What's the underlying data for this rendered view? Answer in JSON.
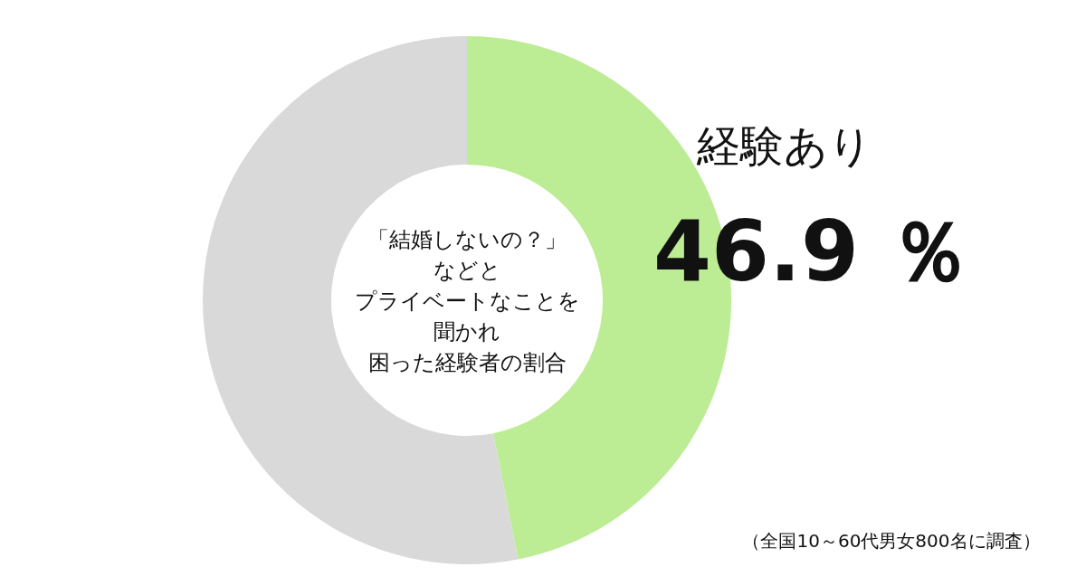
{
  "chart_data": {
    "type": "donut",
    "categories": [
      "経験あり",
      null
    ],
    "values": [
      46.9,
      53.1
    ],
    "colors": [
      "#bcec93",
      "#d9d9d9"
    ],
    "value_labels": [
      "46.9 ％",
      null
    ],
    "annotations": [
      "「結婚しないの？」",
      "などと",
      "プライベートなことを",
      "聞かれ",
      "困った経験者の割合",
      "（全国10～60代男女800名に調査）"
    ]
  }
}
